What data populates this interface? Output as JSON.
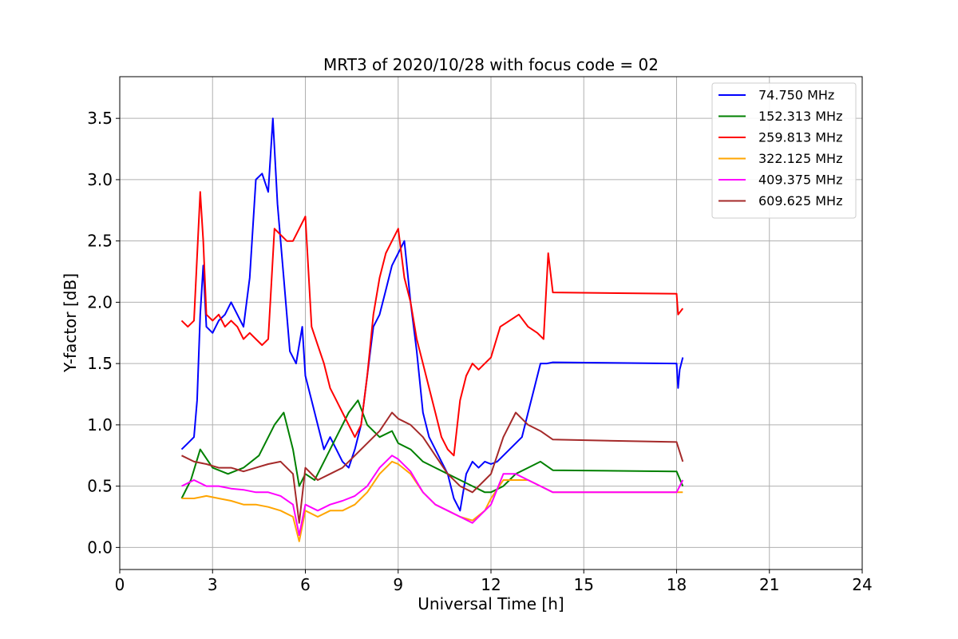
{
  "chart_data": {
    "type": "line",
    "title": "MRT3 of 2020/10/28 with focus code = 02",
    "xlabel": "Universal Time [h]",
    "ylabel": "Y-factor [dB]",
    "xlim": [
      0,
      24
    ],
    "ylim": [
      -0.18,
      3.84
    ],
    "xticks": [
      0,
      3,
      6,
      9,
      12,
      15,
      18,
      21,
      24
    ],
    "yticks": [
      0.0,
      0.5,
      1.0,
      1.5,
      2.0,
      2.5,
      3.0,
      3.5
    ],
    "xtick_labels": [
      "0",
      "3",
      "6",
      "9",
      "12",
      "15",
      "18",
      "21",
      "24"
    ],
    "ytick_labels": [
      "0.0",
      "0.5",
      "1.0",
      "1.5",
      "2.0",
      "2.5",
      "3.0",
      "3.5"
    ],
    "grid": true,
    "legend_position": "top-right",
    "series": [
      {
        "name": " 74.750 MHz",
        "color": "#0000ff",
        "x": [
          2.0,
          2.2,
          2.4,
          2.5,
          2.6,
          2.7,
          2.8,
          3.0,
          3.2,
          3.4,
          3.6,
          3.8,
          4.0,
          4.2,
          4.4,
          4.6,
          4.8,
          4.95,
          5.1,
          5.3,
          5.5,
          5.7,
          5.9,
          6.0,
          6.2,
          6.4,
          6.6,
          6.8,
          7.0,
          7.2,
          7.4,
          7.6,
          7.8,
          8.0,
          8.2,
          8.4,
          8.6,
          8.8,
          9.0,
          9.2,
          9.4,
          9.6,
          9.8,
          10.0,
          10.2,
          10.4,
          10.6,
          10.8,
          11.0,
          11.2,
          11.4,
          11.6,
          11.8,
          12.0,
          12.2,
          12.4,
          12.6,
          12.8,
          13.0,
          13.2,
          13.4,
          13.6,
          13.8,
          14.0,
          18.0,
          18.05,
          18.1,
          18.2
        ],
        "y": [
          0.8,
          0.85,
          0.9,
          1.2,
          1.9,
          2.3,
          1.8,
          1.75,
          1.85,
          1.9,
          2.0,
          1.9,
          1.8,
          2.2,
          3.0,
          3.05,
          2.9,
          3.5,
          2.8,
          2.2,
          1.6,
          1.5,
          1.8,
          1.4,
          1.2,
          1.0,
          0.8,
          0.9,
          0.8,
          0.7,
          0.65,
          0.8,
          1.0,
          1.4,
          1.8,
          1.9,
          2.1,
          2.3,
          2.4,
          2.5,
          2.0,
          1.6,
          1.1,
          0.9,
          0.8,
          0.7,
          0.6,
          0.4,
          0.3,
          0.6,
          0.7,
          0.65,
          0.7,
          0.68,
          0.7,
          0.75,
          0.8,
          0.85,
          0.9,
          1.1,
          1.3,
          1.5,
          1.5,
          1.51,
          1.5,
          1.3,
          1.45,
          1.55
        ]
      },
      {
        "name": "152.313 MHz",
        "color": "#008000",
        "x": [
          2.0,
          2.3,
          2.6,
          3.0,
          3.5,
          4.0,
          4.5,
          5.0,
          5.3,
          5.6,
          5.8,
          6.0,
          6.3,
          6.6,
          7.0,
          7.4,
          7.7,
          8.0,
          8.4,
          8.8,
          9.0,
          9.4,
          9.8,
          10.2,
          10.6,
          11.0,
          11.4,
          11.8,
          12.0,
          12.4,
          12.8,
          13.2,
          13.6,
          14.0,
          18.0,
          18.2
        ],
        "y": [
          0.4,
          0.55,
          0.8,
          0.65,
          0.6,
          0.65,
          0.75,
          1.0,
          1.1,
          0.8,
          0.5,
          0.6,
          0.55,
          0.7,
          0.9,
          1.1,
          1.2,
          1.0,
          0.9,
          0.95,
          0.85,
          0.8,
          0.7,
          0.65,
          0.6,
          0.55,
          0.5,
          0.45,
          0.45,
          0.5,
          0.6,
          0.65,
          0.7,
          0.63,
          0.62,
          0.5
        ]
      },
      {
        "name": "259.813 MHz",
        "color": "#ff0000",
        "x": [
          2.0,
          2.2,
          2.4,
          2.6,
          2.7,
          2.8,
          3.0,
          3.2,
          3.4,
          3.6,
          3.8,
          4.0,
          4.2,
          4.4,
          4.6,
          4.8,
          5.0,
          5.2,
          5.4,
          5.6,
          5.8,
          6.0,
          6.2,
          6.4,
          6.6,
          6.8,
          7.0,
          7.2,
          7.4,
          7.6,
          7.8,
          8.0,
          8.2,
          8.4,
          8.6,
          8.8,
          9.0,
          9.2,
          9.4,
          9.6,
          9.8,
          10.0,
          10.2,
          10.4,
          10.6,
          10.8,
          11.0,
          11.2,
          11.4,
          11.6,
          11.8,
          12.0,
          12.3,
          12.6,
          12.9,
          13.2,
          13.5,
          13.7,
          13.85,
          14.0,
          18.0,
          18.05,
          18.2
        ],
        "y": [
          1.85,
          1.8,
          1.85,
          2.9,
          2.5,
          1.9,
          1.85,
          1.9,
          1.8,
          1.85,
          1.8,
          1.7,
          1.75,
          1.7,
          1.65,
          1.7,
          2.6,
          2.55,
          2.5,
          2.5,
          2.6,
          2.7,
          1.8,
          1.65,
          1.5,
          1.3,
          1.2,
          1.1,
          1.0,
          0.9,
          1.0,
          1.4,
          1.9,
          2.2,
          2.4,
          2.5,
          2.6,
          2.2,
          2.0,
          1.7,
          1.5,
          1.3,
          1.1,
          0.9,
          0.8,
          0.75,
          1.2,
          1.4,
          1.5,
          1.45,
          1.5,
          1.55,
          1.8,
          1.85,
          1.9,
          1.8,
          1.75,
          1.7,
          2.4,
          2.08,
          2.07,
          1.9,
          1.95
        ]
      },
      {
        "name": "322.125 MHz",
        "color": "#ffa500",
        "x": [
          2.0,
          2.4,
          2.8,
          3.2,
          3.6,
          4.0,
          4.4,
          4.8,
          5.2,
          5.6,
          5.8,
          6.0,
          6.4,
          6.8,
          7.2,
          7.6,
          8.0,
          8.4,
          8.8,
          9.0,
          9.4,
          9.8,
          10.2,
          10.6,
          11.0,
          11.4,
          11.8,
          12.0,
          12.4,
          12.8,
          13.2,
          13.6,
          14.0,
          18.0,
          18.2
        ],
        "y": [
          0.4,
          0.4,
          0.42,
          0.4,
          0.38,
          0.35,
          0.35,
          0.33,
          0.3,
          0.25,
          0.05,
          0.3,
          0.25,
          0.3,
          0.3,
          0.35,
          0.45,
          0.6,
          0.7,
          0.68,
          0.6,
          0.45,
          0.35,
          0.3,
          0.25,
          0.22,
          0.3,
          0.4,
          0.55,
          0.55,
          0.55,
          0.5,
          0.45,
          0.45,
          0.45
        ]
      },
      {
        "name": "409.375 MHz",
        "color": "#ff00ff",
        "x": [
          2.0,
          2.4,
          2.8,
          3.2,
          3.6,
          4.0,
          4.4,
          4.8,
          5.2,
          5.6,
          5.8,
          6.0,
          6.4,
          6.8,
          7.2,
          7.6,
          8.0,
          8.4,
          8.8,
          9.0,
          9.4,
          9.8,
          10.2,
          10.6,
          11.0,
          11.4,
          11.8,
          12.0,
          12.4,
          12.8,
          13.2,
          13.6,
          14.0,
          18.0,
          18.2
        ],
        "y": [
          0.5,
          0.55,
          0.5,
          0.5,
          0.48,
          0.47,
          0.45,
          0.45,
          0.42,
          0.35,
          0.1,
          0.35,
          0.3,
          0.35,
          0.38,
          0.42,
          0.5,
          0.65,
          0.75,
          0.72,
          0.62,
          0.45,
          0.35,
          0.3,
          0.25,
          0.2,
          0.3,
          0.35,
          0.6,
          0.6,
          0.55,
          0.5,
          0.45,
          0.45,
          0.55
        ]
      },
      {
        "name": "609.625 MHz",
        "color": "#a52a2a",
        "x": [
          2.0,
          2.4,
          2.8,
          3.2,
          3.6,
          4.0,
          4.4,
          4.8,
          5.2,
          5.6,
          5.8,
          6.0,
          6.4,
          6.8,
          7.2,
          7.6,
          8.0,
          8.4,
          8.8,
          9.0,
          9.4,
          9.8,
          10.2,
          10.6,
          11.0,
          11.4,
          11.8,
          12.0,
          12.4,
          12.8,
          13.2,
          13.6,
          14.0,
          18.0,
          18.2
        ],
        "y": [
          0.75,
          0.7,
          0.68,
          0.65,
          0.65,
          0.62,
          0.65,
          0.68,
          0.7,
          0.6,
          0.2,
          0.65,
          0.55,
          0.6,
          0.65,
          0.75,
          0.85,
          0.95,
          1.1,
          1.05,
          1.0,
          0.9,
          0.75,
          0.6,
          0.5,
          0.45,
          0.55,
          0.6,
          0.9,
          1.1,
          1.0,
          0.95,
          0.88,
          0.86,
          0.7
        ]
      }
    ]
  }
}
